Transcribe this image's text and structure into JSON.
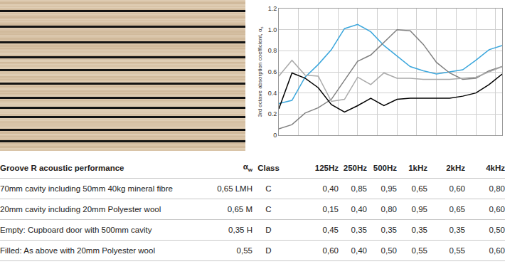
{
  "chart_data": {
    "type": "line",
    "ylabel": {
      "text": "3rd octave absorption coefficient, α",
      "sub": "s"
    },
    "categories": [
      null,
      null,
      null,
      null,
      null,
      null,
      null,
      null,
      null,
      null,
      null,
      null,
      null,
      null,
      null,
      null,
      null,
      null
    ],
    "series": [
      {
        "color": "#3aa6dc",
        "values": [
          0.3,
          0.33,
          0.55,
          0.67,
          0.81,
          1.01,
          1.05,
          0.98,
          0.85,
          0.75,
          0.65,
          0.61,
          0.58,
          0.6,
          0.62,
          0.71,
          0.81,
          0.85
        ]
      },
      {
        "color": "#808080",
        "values": [
          0.06,
          0.1,
          0.21,
          0.26,
          0.34,
          0.52,
          0.7,
          0.76,
          0.88,
          1.0,
          0.99,
          0.86,
          0.69,
          0.59,
          0.53,
          0.54,
          0.61,
          0.65
        ]
      },
      {
        "color": "#000000",
        "values": [
          0.25,
          0.59,
          0.54,
          0.45,
          0.29,
          0.22,
          0.28,
          0.35,
          0.28,
          0.34,
          0.35,
          0.35,
          0.35,
          0.35,
          0.37,
          0.4,
          0.48,
          0.58
        ]
      },
      {
        "color": "#a9a9a9",
        "values": [
          0.56,
          0.71,
          0.57,
          0.56,
          0.32,
          0.34,
          0.55,
          0.48,
          0.59,
          0.54,
          0.54,
          0.53,
          0.53,
          0.53,
          0.54,
          0.55,
          0.6,
          0.65
        ]
      }
    ],
    "ylim": [
      0,
      1.2
    ],
    "yticks": [
      0,
      0.2,
      0.4,
      0.6,
      0.8,
      {
        "value": 1,
        "label": "1.0"
      },
      1.2
    ],
    "grid": true,
    "tick_labels": "y"
  },
  "table": {
    "header": [
      "Groove R acoustic performance",
      {
        "text": "α",
        "sub": "w"
      },
      "Class",
      "125Hz",
      "250Hz",
      "500Hz",
      "1kHz",
      "2kHz",
      "4kHz"
    ],
    "rows": [
      [
        "70mm cavity including 50mm 40kg  mineral fibre",
        "0,65 LMH",
        "C",
        "0,40",
        "0,85",
        "0,95",
        "0,65",
        "0,60",
        "0,80"
      ],
      [
        "20mm cavity including 20mm Polyester wool",
        "0,65 M",
        "C",
        "0,15",
        "0,40",
        "0,80",
        "0,95",
        "0,65",
        "0,60"
      ],
      [
        "Empty: Cupboard door with 500mm cavity",
        "0,35 H",
        "D",
        "0,45",
        "0,35",
        "0,35",
        "0,35",
        "0,35",
        "0,50"
      ],
      [
        "Filled: As above with 20mm Polyester wool",
        "0,55",
        "D",
        "0,60",
        "0,40",
        "0,50",
        "0,55",
        "0,55",
        "0,60"
      ]
    ]
  }
}
